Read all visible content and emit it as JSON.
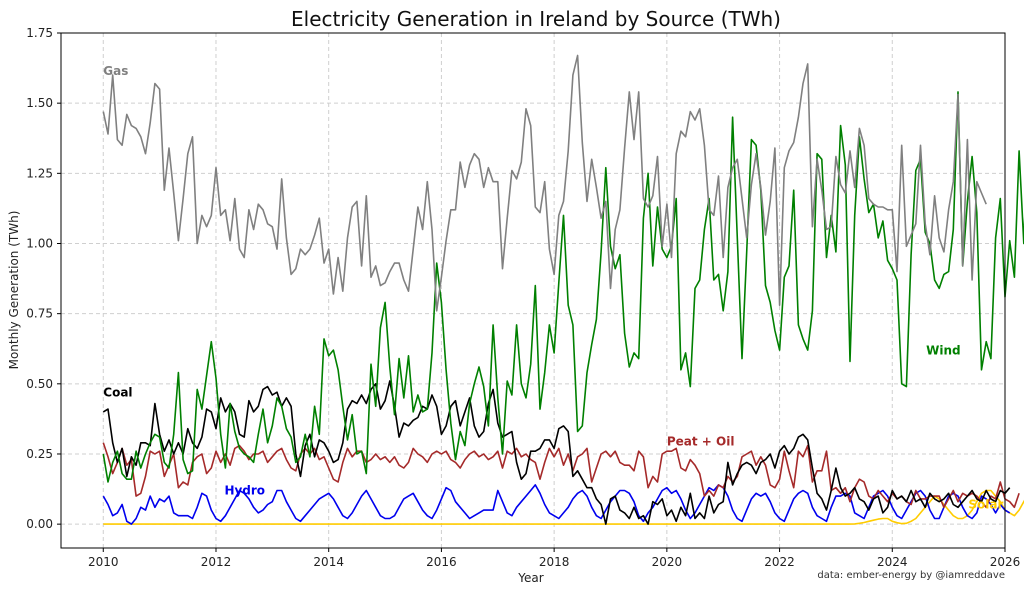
{
  "chart_data": {
    "type": "line",
    "title": "Electricity Generation in Ireland by Source (TWh)",
    "xlabel": "Year",
    "ylabel": "Monthly Generation (TWh)",
    "credit": "data: ember-energy by @iamreddave",
    "xlim": [
      2009.25,
      2026
    ],
    "ylim": [
      -0.085,
      1.75
    ],
    "x_ticks": [
      2010,
      2012,
      2014,
      2016,
      2018,
      2020,
      2022,
      2024,
      2026
    ],
    "y_ticks": [
      0.0,
      0.25,
      0.5,
      0.75,
      1.0,
      1.25,
      1.5,
      1.75
    ],
    "y_tick_labels": [
      "0.00",
      "0.25",
      "0.50",
      "0.75",
      "1.00",
      "1.25",
      "1.50",
      "1.75"
    ],
    "grid": true,
    "legend": "inline labels",
    "start_year": 2010,
    "series": [
      {
        "name": "Gas",
        "color": "#808080",
        "values": [
          1.47,
          1.39,
          1.6,
          1.37,
          1.35,
          1.46,
          1.42,
          1.41,
          1.38,
          1.32,
          1.43,
          1.57,
          1.55,
          1.19,
          1.34,
          1.18,
          1.01,
          1.16,
          1.32,
          1.38,
          1.0,
          1.1,
          1.06,
          1.1,
          1.27,
          1.1,
          1.12,
          1.01,
          1.16,
          0.98,
          0.95,
          1.12,
          1.05,
          1.14,
          1.12,
          1.07,
          1.06,
          0.98,
          1.23,
          1.02,
          0.89,
          0.91,
          0.98,
          0.96,
          0.98,
          1.03,
          1.09,
          0.93,
          0.98,
          0.82,
          0.95,
          0.83,
          1.02,
          1.13,
          1.15,
          0.92,
          1.17,
          0.88,
          0.92,
          0.85,
          0.86,
          0.9,
          0.93,
          0.93,
          0.87,
          0.83,
          0.98,
          1.13,
          1.05,
          1.22,
          1.05,
          0.76,
          0.88,
          1.01,
          1.12,
          1.12,
          1.29,
          1.2,
          1.28,
          1.32,
          1.3,
          1.2,
          1.27,
          1.22,
          1.22,
          0.91,
          1.09,
          1.26,
          1.23,
          1.29,
          1.48,
          1.42,
          1.13,
          1.11,
          1.22,
          0.98,
          0.89,
          1.1,
          1.15,
          1.33,
          1.6,
          1.67,
          1.36,
          1.15,
          1.3,
          1.2,
          1.09,
          1.15,
          0.84,
          1.05,
          1.12,
          1.34,
          1.54,
          1.37,
          1.54,
          1.16,
          1.13,
          1.17,
          1.31,
          0.99,
          1.14,
          0.95,
          1.32,
          1.4,
          1.38,
          1.47,
          1.44,
          1.48,
          1.35,
          1.12,
          1.1,
          1.24,
          0.95,
          1.2,
          1.27,
          1.3,
          1.16,
          1.02,
          1.21,
          1.32,
          1.2,
          1.03,
          1.15,
          1.34,
          0.78,
          1.27,
          1.33,
          1.36,
          1.45,
          1.57,
          1.64,
          1.06,
          1.3,
          1.19,
          1.05,
          1.06,
          1.31,
          1.21,
          1.18,
          1.33,
          1.2,
          1.41,
          1.35,
          1.16,
          1.14,
          1.13,
          1.13,
          1.12,
          1.12,
          0.9,
          1.35,
          0.99,
          1.03,
          1.07,
          1.35,
          1.07,
          0.96,
          1.17,
          1.02,
          0.97,
          1.12,
          1.22,
          1.53,
          0.92,
          1.37,
          0.87,
          1.22,
          1.18,
          1.14
        ]
      },
      {
        "name": "Wind",
        "color": "#008000",
        "values": [
          0.25,
          0.15,
          0.22,
          0.26,
          0.18,
          0.16,
          0.16,
          0.26,
          0.2,
          0.25,
          0.29,
          0.32,
          0.31,
          0.22,
          0.2,
          0.32,
          0.54,
          0.23,
          0.18,
          0.19,
          0.48,
          0.41,
          0.53,
          0.65,
          0.52,
          0.32,
          0.2,
          0.43,
          0.33,
          0.27,
          0.25,
          0.24,
          0.22,
          0.32,
          0.41,
          0.29,
          0.35,
          0.45,
          0.42,
          0.34,
          0.31,
          0.22,
          0.24,
          0.32,
          0.24,
          0.42,
          0.32,
          0.66,
          0.6,
          0.62,
          0.55,
          0.42,
          0.3,
          0.39,
          0.25,
          0.26,
          0.18,
          0.57,
          0.42,
          0.7,
          0.79,
          0.56,
          0.39,
          0.59,
          0.45,
          0.6,
          0.4,
          0.46,
          0.4,
          0.41,
          0.61,
          0.93,
          0.79,
          0.55,
          0.36,
          0.23,
          0.33,
          0.28,
          0.43,
          0.5,
          0.56,
          0.49,
          0.35,
          0.71,
          0.45,
          0.25,
          0.51,
          0.46,
          0.71,
          0.5,
          0.45,
          0.57,
          0.85,
          0.41,
          0.54,
          0.71,
          0.61,
          0.86,
          1.1,
          0.78,
          0.71,
          0.33,
          0.35,
          0.54,
          0.64,
          0.73,
          0.97,
          1.27,
          0.99,
          0.91,
          0.96,
          0.68,
          0.56,
          0.61,
          0.59,
          1.09,
          1.25,
          0.92,
          1.13,
          0.98,
          0.95,
          0.99,
          1.16,
          0.55,
          0.61,
          0.49,
          0.84,
          0.87,
          1.05,
          1.16,
          0.87,
          0.89,
          0.76,
          0.9,
          1.45,
          1.02,
          0.59,
          0.97,
          1.37,
          1.35,
          1.19,
          0.85,
          0.79,
          0.69,
          0.62,
          0.88,
          0.92,
          1.19,
          0.71,
          0.66,
          0.62,
          0.76,
          1.32,
          1.3,
          0.95,
          1.1,
          0.97,
          1.42,
          1.28,
          0.58,
          1.1,
          1.38,
          1.23,
          1.11,
          1.14,
          1.02,
          1.08,
          0.94,
          0.91,
          0.87,
          0.5,
          0.49,
          0.96,
          1.26,
          1.3,
          1.04,
          1.0,
          0.87,
          0.84,
          0.89,
          0.9,
          1.05,
          1.54,
          0.92,
          1.15,
          1.31,
          1.11,
          0.55,
          0.65,
          0.59,
          1.02,
          1.16,
          0.81,
          1.01,
          0.88,
          1.33,
          1.0,
          1.45,
          1.16,
          0.97,
          0.78
        ]
      },
      {
        "name": "Coal",
        "color": "#000000",
        "values": [
          0.4,
          0.41,
          0.29,
          0.22,
          0.27,
          0.17,
          0.24,
          0.21,
          0.29,
          0.29,
          0.28,
          0.43,
          0.32,
          0.26,
          0.3,
          0.25,
          0.29,
          0.25,
          0.34,
          0.29,
          0.27,
          0.31,
          0.41,
          0.4,
          0.34,
          0.45,
          0.4,
          0.43,
          0.4,
          0.32,
          0.31,
          0.44,
          0.4,
          0.42,
          0.48,
          0.49,
          0.46,
          0.47,
          0.42,
          0.45,
          0.42,
          0.25,
          0.17,
          0.28,
          0.32,
          0.24,
          0.3,
          0.29,
          0.26,
          0.22,
          0.23,
          0.29,
          0.41,
          0.44,
          0.43,
          0.46,
          0.43,
          0.48,
          0.5,
          0.41,
          0.44,
          0.51,
          0.42,
          0.31,
          0.36,
          0.35,
          0.37,
          0.38,
          0.42,
          0.41,
          0.46,
          0.42,
          0.32,
          0.35,
          0.42,
          0.44,
          0.35,
          0.4,
          0.45,
          0.35,
          0.31,
          0.33,
          0.43,
          0.48,
          0.36,
          0.31,
          0.32,
          0.33,
          0.22,
          0.16,
          0.18,
          0.26,
          0.26,
          0.27,
          0.3,
          0.3,
          0.27,
          0.34,
          0.35,
          0.33,
          0.17,
          0.19,
          0.16,
          0.13,
          0.13,
          0.09,
          0.07,
          0.0,
          0.09,
          0.1,
          0.05,
          0.04,
          0.02,
          0.06,
          0.02,
          0.03,
          0.0,
          0.08,
          0.07,
          0.09,
          0.03,
          0.05,
          0.01,
          0.06,
          0.03,
          0.11,
          0.02,
          0.04,
          0.02,
          0.1,
          0.04,
          0.07,
          0.08,
          0.22,
          0.14,
          0.18,
          0.21,
          0.22,
          0.21,
          0.18,
          0.22,
          0.23,
          0.25,
          0.2,
          0.26,
          0.28,
          0.25,
          0.27,
          0.31,
          0.32,
          0.3,
          0.2,
          0.11,
          0.09,
          0.05,
          0.12,
          0.2,
          0.13,
          0.1,
          0.11,
          0.13,
          0.09,
          0.08,
          0.05,
          0.09,
          0.1,
          0.04,
          0.06,
          0.12,
          0.09,
          0.1,
          0.08,
          0.12,
          0.08,
          0.09,
          0.06,
          0.11,
          0.09,
          0.08,
          0.09,
          0.11,
          0.07,
          0.06,
          0.08,
          0.1,
          0.12,
          0.09,
          0.08,
          0.12,
          0.09,
          0.08,
          0.12,
          0.11,
          0.13
        ]
      },
      {
        "name": "Peat + Oil",
        "color": "#a52a2a",
        "values": [
          0.29,
          0.24,
          0.18,
          0.22,
          0.27,
          0.21,
          0.23,
          0.1,
          0.11,
          0.17,
          0.26,
          0.25,
          0.26,
          0.17,
          0.21,
          0.25,
          0.13,
          0.15,
          0.14,
          0.22,
          0.24,
          0.25,
          0.18,
          0.2,
          0.26,
          0.22,
          0.25,
          0.21,
          0.27,
          0.28,
          0.26,
          0.23,
          0.25,
          0.25,
          0.26,
          0.22,
          0.24,
          0.26,
          0.27,
          0.23,
          0.2,
          0.19,
          0.25,
          0.27,
          0.25,
          0.27,
          0.23,
          0.24,
          0.2,
          0.16,
          0.15,
          0.22,
          0.27,
          0.24,
          0.26,
          0.26,
          0.22,
          0.23,
          0.25,
          0.23,
          0.24,
          0.22,
          0.24,
          0.21,
          0.2,
          0.22,
          0.27,
          0.25,
          0.24,
          0.22,
          0.25,
          0.26,
          0.25,
          0.26,
          0.23,
          0.22,
          0.2,
          0.23,
          0.25,
          0.26,
          0.24,
          0.25,
          0.23,
          0.24,
          0.26,
          0.2,
          0.26,
          0.25,
          0.27,
          0.24,
          0.25,
          0.23,
          0.22,
          0.16,
          0.22,
          0.27,
          0.24,
          0.27,
          0.21,
          0.25,
          0.19,
          0.24,
          0.25,
          0.27,
          0.15,
          0.2,
          0.25,
          0.26,
          0.24,
          0.26,
          0.22,
          0.21,
          0.21,
          0.19,
          0.26,
          0.24,
          0.13,
          0.17,
          0.15,
          0.25,
          0.26,
          0.26,
          0.27,
          0.2,
          0.19,
          0.23,
          0.21,
          0.18,
          0.1,
          0.12,
          0.1,
          0.14,
          0.13,
          0.17,
          0.15,
          0.17,
          0.24,
          0.25,
          0.26,
          0.21,
          0.24,
          0.21,
          0.14,
          0.13,
          0.16,
          0.26,
          0.19,
          0.13,
          0.26,
          0.24,
          0.28,
          0.15,
          0.19,
          0.19,
          0.26,
          0.12,
          0.13,
          0.11,
          0.13,
          0.08,
          0.13,
          0.16,
          0.15,
          0.1,
          0.09,
          0.12,
          0.1,
          0.08,
          0.11,
          0.09,
          0.1,
          0.08,
          0.07,
          0.12,
          0.09,
          0.09,
          0.1,
          0.1,
          0.1,
          0.06,
          0.09,
          0.12,
          0.08,
          0.11,
          0.1,
          0.11,
          0.1,
          0.08,
          0.06,
          0.1,
          0.09,
          0.15,
          0.09,
          0.08,
          0.06,
          0.11
        ]
      },
      {
        "name": "Hydro",
        "color": "#0000ee",
        "values": [
          0.1,
          0.07,
          0.03,
          0.04,
          0.07,
          0.01,
          0.0,
          0.02,
          0.06,
          0.05,
          0.1,
          0.06,
          0.09,
          0.08,
          0.1,
          0.04,
          0.03,
          0.03,
          0.03,
          0.02,
          0.06,
          0.11,
          0.1,
          0.05,
          0.02,
          0.01,
          0.03,
          0.06,
          0.09,
          0.12,
          0.11,
          0.09,
          0.06,
          0.04,
          0.05,
          0.07,
          0.08,
          0.12,
          0.12,
          0.08,
          0.05,
          0.02,
          0.01,
          0.03,
          0.05,
          0.07,
          0.09,
          0.1,
          0.11,
          0.09,
          0.06,
          0.03,
          0.02,
          0.04,
          0.07,
          0.1,
          0.12,
          0.09,
          0.06,
          0.03,
          0.02,
          0.02,
          0.03,
          0.06,
          0.09,
          0.1,
          0.11,
          0.08,
          0.05,
          0.03,
          0.02,
          0.05,
          0.09,
          0.13,
          0.12,
          0.08,
          0.06,
          0.04,
          0.02,
          0.03,
          0.04,
          0.05,
          0.05,
          0.05,
          0.12,
          0.08,
          0.04,
          0.03,
          0.06,
          0.08,
          0.1,
          0.12,
          0.14,
          0.11,
          0.07,
          0.04,
          0.03,
          0.02,
          0.04,
          0.06,
          0.09,
          0.11,
          0.12,
          0.1,
          0.06,
          0.03,
          0.02,
          0.05,
          0.08,
          0.1,
          0.12,
          0.12,
          0.11,
          0.08,
          0.03,
          0.01,
          0.04,
          0.06,
          0.09,
          0.12,
          0.13,
          0.11,
          0.12,
          0.09,
          0.05,
          0.02,
          0.04,
          0.07,
          0.1,
          0.13,
          0.12,
          0.14,
          0.13,
          0.1,
          0.05,
          0.02,
          0.01,
          0.05,
          0.09,
          0.11,
          0.1,
          0.11,
          0.08,
          0.04,
          0.02,
          0.01,
          0.05,
          0.09,
          0.11,
          0.12,
          0.11,
          0.06,
          0.03,
          0.02,
          0.01,
          0.06,
          0.1,
          0.1,
          0.11,
          0.1,
          0.04,
          0.03,
          0.02,
          0.06,
          0.1,
          0.11,
          0.12,
          0.1,
          0.06,
          0.03,
          0.02,
          0.05,
          0.08,
          0.11,
          0.12,
          0.1,
          0.05,
          0.02,
          0.02,
          0.06,
          0.1,
          0.11,
          0.1,
          0.06,
          0.03,
          0.02,
          0.04,
          0.1,
          0.09,
          0.07,
          0.04,
          0.07,
          0.05,
          0.04
        ]
      },
      {
        "name": "Solar",
        "color": "#ffcc00",
        "values": [
          0,
          0,
          0,
          0,
          0,
          0,
          0,
          0,
          0,
          0,
          0,
          0,
          0,
          0,
          0,
          0,
          0,
          0,
          0,
          0,
          0,
          0,
          0,
          0,
          0,
          0,
          0,
          0,
          0,
          0,
          0,
          0,
          0,
          0,
          0,
          0,
          0,
          0,
          0,
          0,
          0,
          0,
          0,
          0,
          0,
          0,
          0,
          0,
          0,
          0,
          0,
          0,
          0,
          0,
          0,
          0,
          0,
          0,
          0,
          0,
          0,
          0,
          0,
          0,
          0,
          0,
          0,
          0,
          0,
          0,
          0,
          0,
          0,
          0,
          0,
          0,
          0,
          0,
          0,
          0,
          0,
          0,
          0,
          0,
          0,
          0,
          0,
          0,
          0,
          0,
          0,
          0,
          0,
          0,
          0,
          0,
          0,
          0,
          0,
          0,
          0,
          0,
          0,
          0,
          0,
          0,
          0,
          0,
          0,
          0,
          0,
          0,
          0,
          0,
          0,
          0,
          0,
          0,
          0,
          0,
          0,
          0,
          0,
          0,
          0,
          0,
          0,
          0,
          0,
          0,
          0,
          0,
          0,
          0,
          0,
          0,
          0,
          0,
          0,
          0,
          0,
          0,
          0,
          0,
          0,
          0,
          0,
          0,
          0,
          0,
          0,
          0,
          0,
          0,
          0,
          0,
          0.0,
          0.0,
          0.0,
          0.0,
          0.001,
          0.003,
          0.006,
          0.01,
          0.014,
          0.018,
          0.02,
          0.02,
          0.01,
          0.005,
          0.002,
          0.003,
          0.01,
          0.02,
          0.04,
          0.06,
          0.08,
          0.1,
          0.09,
          0.07,
          0.05,
          0.03,
          0.02,
          0.02,
          0.03,
          0.05,
          0.08,
          0.11,
          0.12,
          0.12,
          0.1,
          0.08,
          0.05,
          0.04,
          0.03,
          0.05,
          0.08,
          0.11,
          0.12
        ]
      }
    ]
  }
}
